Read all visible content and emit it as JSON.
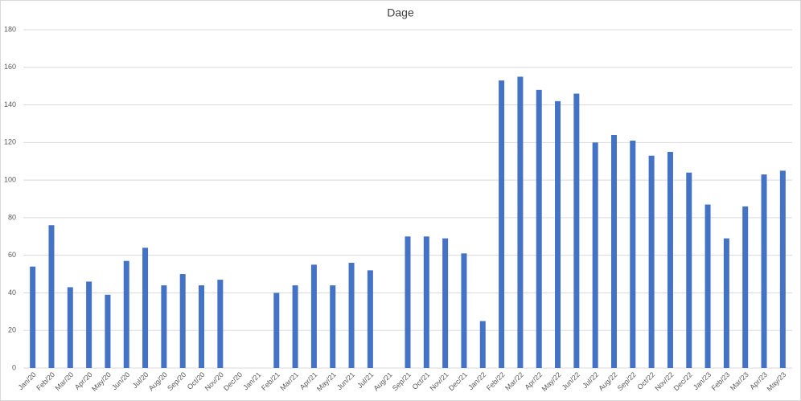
{
  "chart_data": {
    "type": "bar",
    "title": "Dage",
    "categories": [
      "Jan/20",
      "Feb/20",
      "Mar/20",
      "Apr/20",
      "May/20",
      "Jun/20",
      "Jul/20",
      "Aug/20",
      "Sep/20",
      "Oct/20",
      "Nov/20",
      "Dec/20",
      "Jan/21",
      "Feb/21",
      "Mar/21",
      "Apr/21",
      "May/21",
      "Jun/21",
      "Jul/21",
      "Aug/21",
      "Sep/21",
      "Oct/21",
      "Nov/21",
      "Dec/21",
      "Jan/22",
      "Feb/22",
      "Mar/22",
      "Apr/22",
      "May/22",
      "Jun/22",
      "Jul/22",
      "Aug/22",
      "Sep/22",
      "Oct/22",
      "Nov/22",
      "Dec/22",
      "Jan/23",
      "Feb/23",
      "Mar/23",
      "Apr/23",
      "May/23"
    ],
    "values": [
      54,
      76,
      43,
      46,
      39,
      57,
      64,
      44,
      50,
      44,
      47,
      null,
      null,
      40,
      44,
      55,
      44,
      56,
      52,
      null,
      70,
      70,
      69,
      61,
      25,
      153,
      155,
      148,
      142,
      146,
      120,
      124,
      121,
      113,
      115,
      104,
      87,
      69,
      86,
      103,
      105
    ],
    "color": "#4472c4",
    "ylim": [
      0,
      180
    ],
    "yticks": [
      0,
      20,
      40,
      60,
      80,
      100,
      120,
      140,
      160,
      180
    ],
    "grid": true
  }
}
